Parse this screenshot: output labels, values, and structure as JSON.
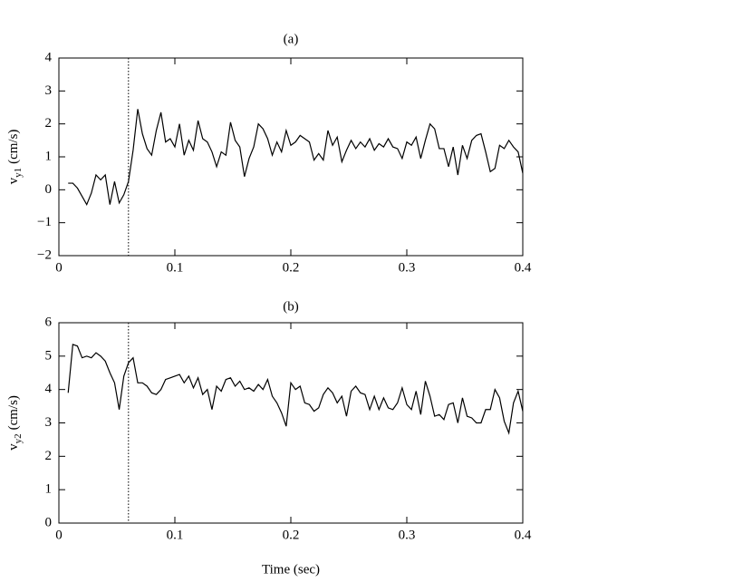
{
  "chart_data": [
    {
      "type": "line",
      "title": "(a)",
      "ylabel": {
        "main": "v",
        "sub": "y1",
        "unit": "(cm/s)"
      },
      "xlim": [
        0,
        0.4
      ],
      "xticks": [
        0,
        0.1,
        0.2,
        0.3,
        0.4
      ],
      "ylim": [
        -2,
        4
      ],
      "yticks": [
        {
          "value": -2,
          "label": "−2"
        },
        {
          "value": -1,
          "label": "−1"
        },
        0,
        1,
        2,
        3,
        4
      ],
      "vline": 0.06,
      "color": "#000000",
      "x": [
        0.008,
        0.012,
        0.016,
        0.02,
        0.024,
        0.028,
        0.032,
        0.036,
        0.04,
        0.044,
        0.048,
        0.052,
        0.056,
        0.06,
        0.064,
        0.068,
        0.072,
        0.076,
        0.08,
        0.084,
        0.088,
        0.092,
        0.096,
        0.1,
        0.104,
        0.108,
        0.112,
        0.116,
        0.12,
        0.124,
        0.128,
        0.132,
        0.136,
        0.14,
        0.144,
        0.148,
        0.152,
        0.156,
        0.16,
        0.164,
        0.168,
        0.172,
        0.176,
        0.18,
        0.184,
        0.188,
        0.192,
        0.196,
        0.2,
        0.204,
        0.208,
        0.212,
        0.216,
        0.22,
        0.224,
        0.228,
        0.232,
        0.236,
        0.24,
        0.244,
        0.248,
        0.252,
        0.256,
        0.26,
        0.264,
        0.268,
        0.272,
        0.276,
        0.28,
        0.284,
        0.288,
        0.292,
        0.296,
        0.3,
        0.304,
        0.308,
        0.312,
        0.316,
        0.32,
        0.324,
        0.328,
        0.332,
        0.336,
        0.34,
        0.344,
        0.348,
        0.352,
        0.356,
        0.36,
        0.364,
        0.368,
        0.372,
        0.376,
        0.38,
        0.384,
        0.388,
        0.392,
        0.396,
        0.4
      ],
      "values": [
        0.2,
        0.2,
        0.05,
        -0.2,
        -0.45,
        -0.1,
        0.45,
        0.3,
        0.45,
        -0.45,
        0.25,
        -0.4,
        -0.15,
        0.25,
        1.2,
        2.45,
        1.7,
        1.25,
        1.05,
        1.8,
        2.35,
        1.45,
        1.55,
        1.3,
        2.0,
        1.05,
        1.5,
        1.2,
        2.1,
        1.55,
        1.45,
        1.15,
        0.7,
        1.15,
        1.05,
        2.05,
        1.5,
        1.3,
        0.4,
        0.95,
        1.3,
        2.0,
        1.85,
        1.55,
        1.05,
        1.45,
        1.15,
        1.8,
        1.35,
        1.45,
        1.65,
        1.55,
        1.45,
        0.9,
        1.1,
        0.9,
        1.8,
        1.35,
        1.6,
        0.85,
        1.2,
        1.5,
        1.25,
        1.45,
        1.3,
        1.55,
        1.2,
        1.4,
        1.3,
        1.55,
        1.3,
        1.25,
        0.95,
        1.45,
        1.35,
        1.6,
        0.95,
        1.5,
        2.0,
        1.85,
        1.25,
        1.25,
        0.7,
        1.3,
        0.45,
        1.35,
        0.95,
        1.5,
        1.65,
        1.7,
        1.15,
        0.55,
        0.65,
        1.35,
        1.25,
        1.5,
        1.3,
        1.15,
        0.5
      ]
    },
    {
      "type": "line",
      "title": "(b)",
      "xlabel": "Time (sec)",
      "ylabel": {
        "main": "v",
        "sub": "y2",
        "unit": "(cm/s)"
      },
      "xlim": [
        0,
        0.4
      ],
      "xticks": [
        0,
        0.1,
        0.2,
        0.3,
        0.4
      ],
      "ylim": [
        0,
        6
      ],
      "yticks": [
        0,
        1,
        2,
        3,
        4,
        5,
        6
      ],
      "vline": 0.06,
      "color": "#000000",
      "x": [
        0.008,
        0.012,
        0.016,
        0.02,
        0.024,
        0.028,
        0.032,
        0.036,
        0.04,
        0.044,
        0.048,
        0.052,
        0.056,
        0.06,
        0.064,
        0.068,
        0.072,
        0.076,
        0.08,
        0.084,
        0.088,
        0.092,
        0.096,
        0.1,
        0.104,
        0.108,
        0.112,
        0.116,
        0.12,
        0.124,
        0.128,
        0.132,
        0.136,
        0.14,
        0.144,
        0.148,
        0.152,
        0.156,
        0.16,
        0.164,
        0.168,
        0.172,
        0.176,
        0.18,
        0.184,
        0.188,
        0.192,
        0.196,
        0.2,
        0.204,
        0.208,
        0.212,
        0.216,
        0.22,
        0.224,
        0.228,
        0.232,
        0.236,
        0.24,
        0.244,
        0.248,
        0.252,
        0.256,
        0.26,
        0.264,
        0.268,
        0.272,
        0.276,
        0.28,
        0.284,
        0.288,
        0.292,
        0.296,
        0.3,
        0.304,
        0.308,
        0.312,
        0.316,
        0.32,
        0.324,
        0.328,
        0.332,
        0.336,
        0.34,
        0.344,
        0.348,
        0.352,
        0.356,
        0.36,
        0.364,
        0.368,
        0.372,
        0.376,
        0.38,
        0.384,
        0.388,
        0.392,
        0.396,
        0.4
      ],
      "values": [
        3.9,
        5.35,
        5.3,
        4.95,
        5.0,
        4.95,
        5.1,
        5.0,
        4.85,
        4.5,
        4.2,
        3.4,
        4.4,
        4.8,
        4.95,
        4.2,
        4.2,
        4.1,
        3.9,
        3.85,
        4.0,
        4.3,
        4.35,
        4.4,
        4.45,
        4.2,
        4.4,
        4.05,
        4.35,
        3.85,
        4.0,
        3.4,
        4.1,
        3.95,
        4.3,
        4.35,
        4.1,
        4.25,
        4.0,
        4.05,
        3.95,
        4.15,
        4.0,
        4.3,
        3.8,
        3.6,
        3.3,
        2.9,
        4.2,
        4.0,
        4.1,
        3.6,
        3.55,
        3.35,
        3.45,
        3.85,
        4.05,
        3.9,
        3.6,
        3.8,
        3.2,
        3.95,
        4.1,
        3.9,
        3.85,
        3.4,
        3.8,
        3.4,
        3.75,
        3.45,
        3.4,
        3.6,
        4.05,
        3.55,
        3.4,
        3.95,
        3.25,
        4.25,
        3.8,
        3.2,
        3.25,
        3.1,
        3.55,
        3.6,
        3.0,
        3.75,
        3.2,
        3.15,
        3.0,
        3.0,
        3.4,
        3.4,
        4.0,
        3.75,
        3.05,
        2.7,
        3.6,
        3.95,
        3.35
      ]
    }
  ]
}
